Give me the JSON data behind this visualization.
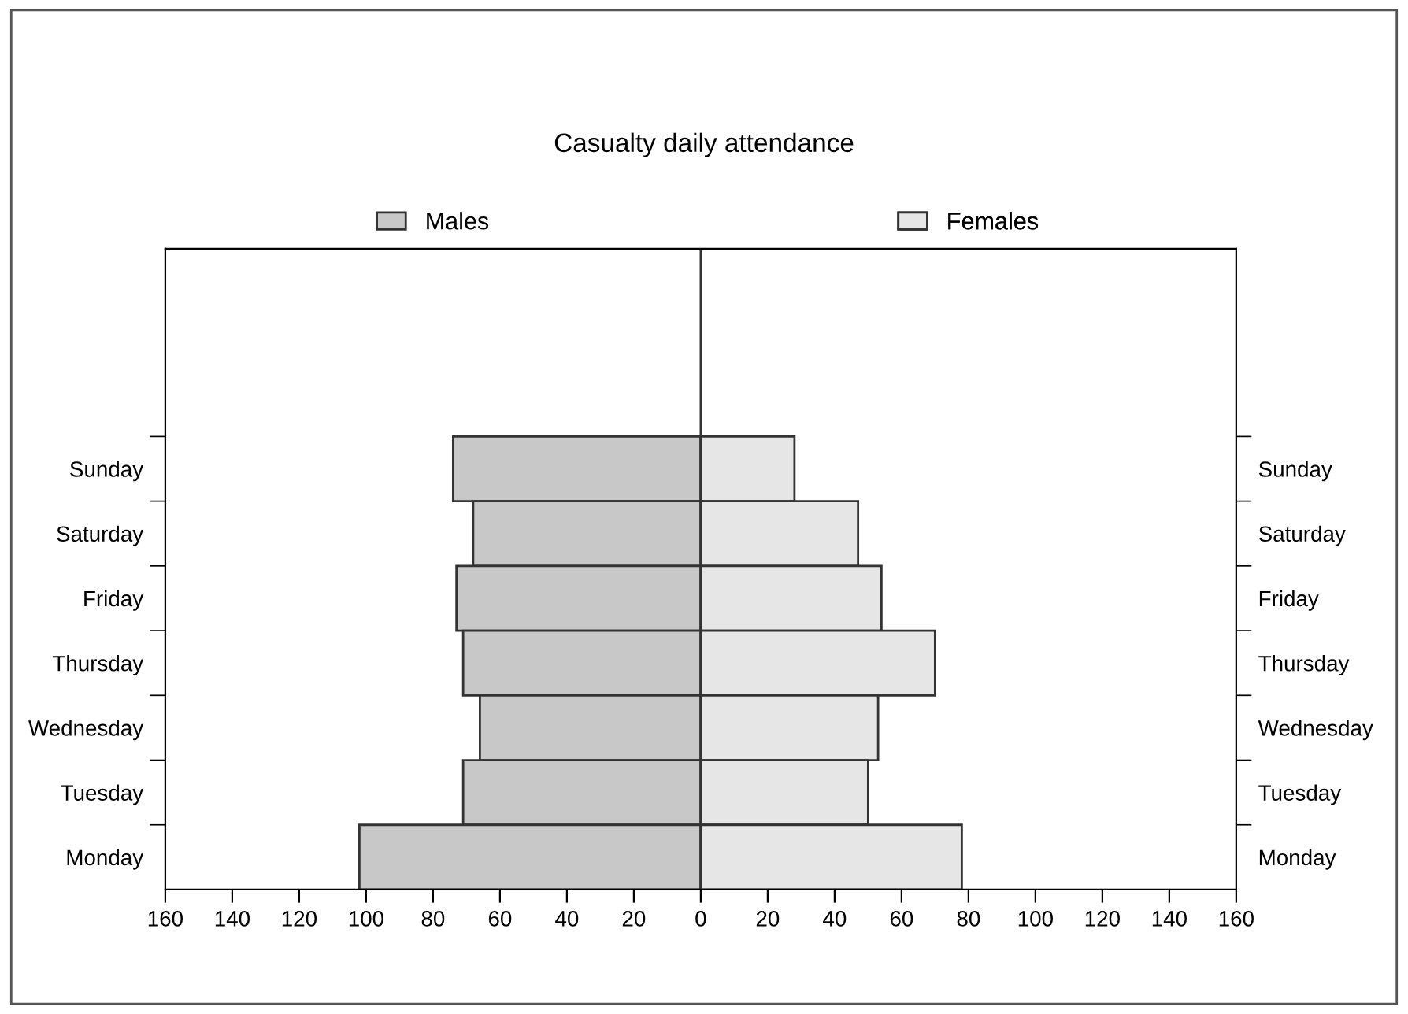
{
  "chart_data": {
    "type": "bar",
    "orientation": "horizontal",
    "stacked": true,
    "title": "Casualty daily attendance",
    "categories": [
      "Sunday",
      "Saturday",
      "Friday",
      "Thursday",
      "Wednesday",
      "Tuesday",
      "Monday"
    ],
    "series": [
      {
        "name": "Males",
        "color": "#c8c8c8",
        "values": [
          -74,
          -68,
          -73,
          -71,
          -66,
          -71,
          -102
        ]
      },
      {
        "name": "Females",
        "color": "#e6e6e6",
        "values": [
          28,
          47,
          54,
          70,
          53,
          50,
          78
        ]
      }
    ],
    "xlim": [
      -160,
      160
    ],
    "xticks": [
      {
        "value": -160,
        "label": "160"
      },
      {
        "value": -140,
        "label": "140"
      },
      {
        "value": -120,
        "label": "120"
      },
      {
        "value": -100,
        "label": "100"
      },
      {
        "value": -80,
        "label": "80"
      },
      {
        "value": -60,
        "label": "60"
      },
      {
        "value": -40,
        "label": "40"
      },
      {
        "value": -20,
        "label": "20"
      },
      0,
      20,
      40,
      60,
      80,
      100,
      120,
      140,
      160
    ],
    "ref_lines": [
      {
        "axis": "x",
        "value": 0,
        "color": "#333333"
      }
    ],
    "grid": false,
    "legend": "top"
  }
}
